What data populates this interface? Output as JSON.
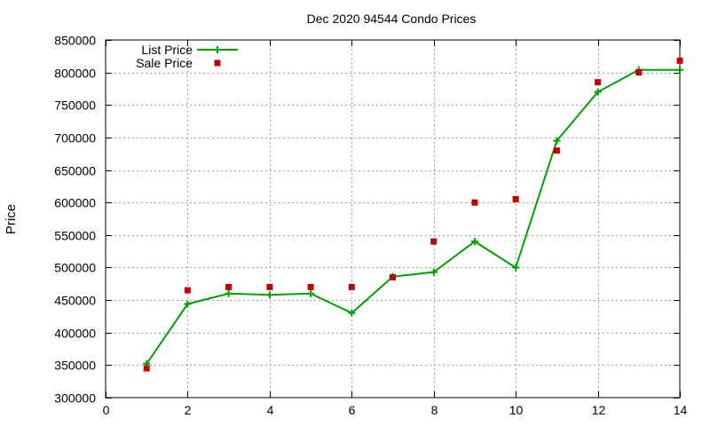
{
  "chart_data": {
    "type": "line",
    "title": "Dec 2020 94544 Condo Prices",
    "xlabel": "",
    "ylabel": "Price",
    "xlim": [
      0,
      14
    ],
    "ylim": [
      300000,
      850000
    ],
    "x_ticks": [
      0,
      2,
      4,
      6,
      8,
      10,
      12,
      14
    ],
    "y_ticks": [
      300000,
      350000,
      400000,
      450000,
      500000,
      550000,
      600000,
      650000,
      700000,
      750000,
      800000,
      850000
    ],
    "grid": true,
    "legend_position": "top-left",
    "series": [
      {
        "name": "List Price",
        "style": "line-with-plus-markers",
        "color": "#00a000",
        "x": [
          1,
          2,
          3,
          4,
          5,
          6,
          7,
          8,
          9,
          10,
          11,
          12,
          13,
          14
        ],
        "values": [
          352000,
          444000,
          460000,
          458000,
          460000,
          430000,
          486000,
          493000,
          540000,
          500000,
          695000,
          770000,
          804000,
          804000
        ]
      },
      {
        "name": "Sale Price",
        "style": "square-markers",
        "color": "#c00000",
        "x": [
          1,
          2,
          3,
          4,
          5,
          6,
          7,
          8,
          9,
          10,
          11,
          12,
          13,
          14
        ],
        "values": [
          345000,
          465000,
          470000,
          470000,
          470000,
          470000,
          485000,
          540000,
          600000,
          605000,
          680000,
          785000,
          800000,
          818000
        ]
      }
    ]
  }
}
